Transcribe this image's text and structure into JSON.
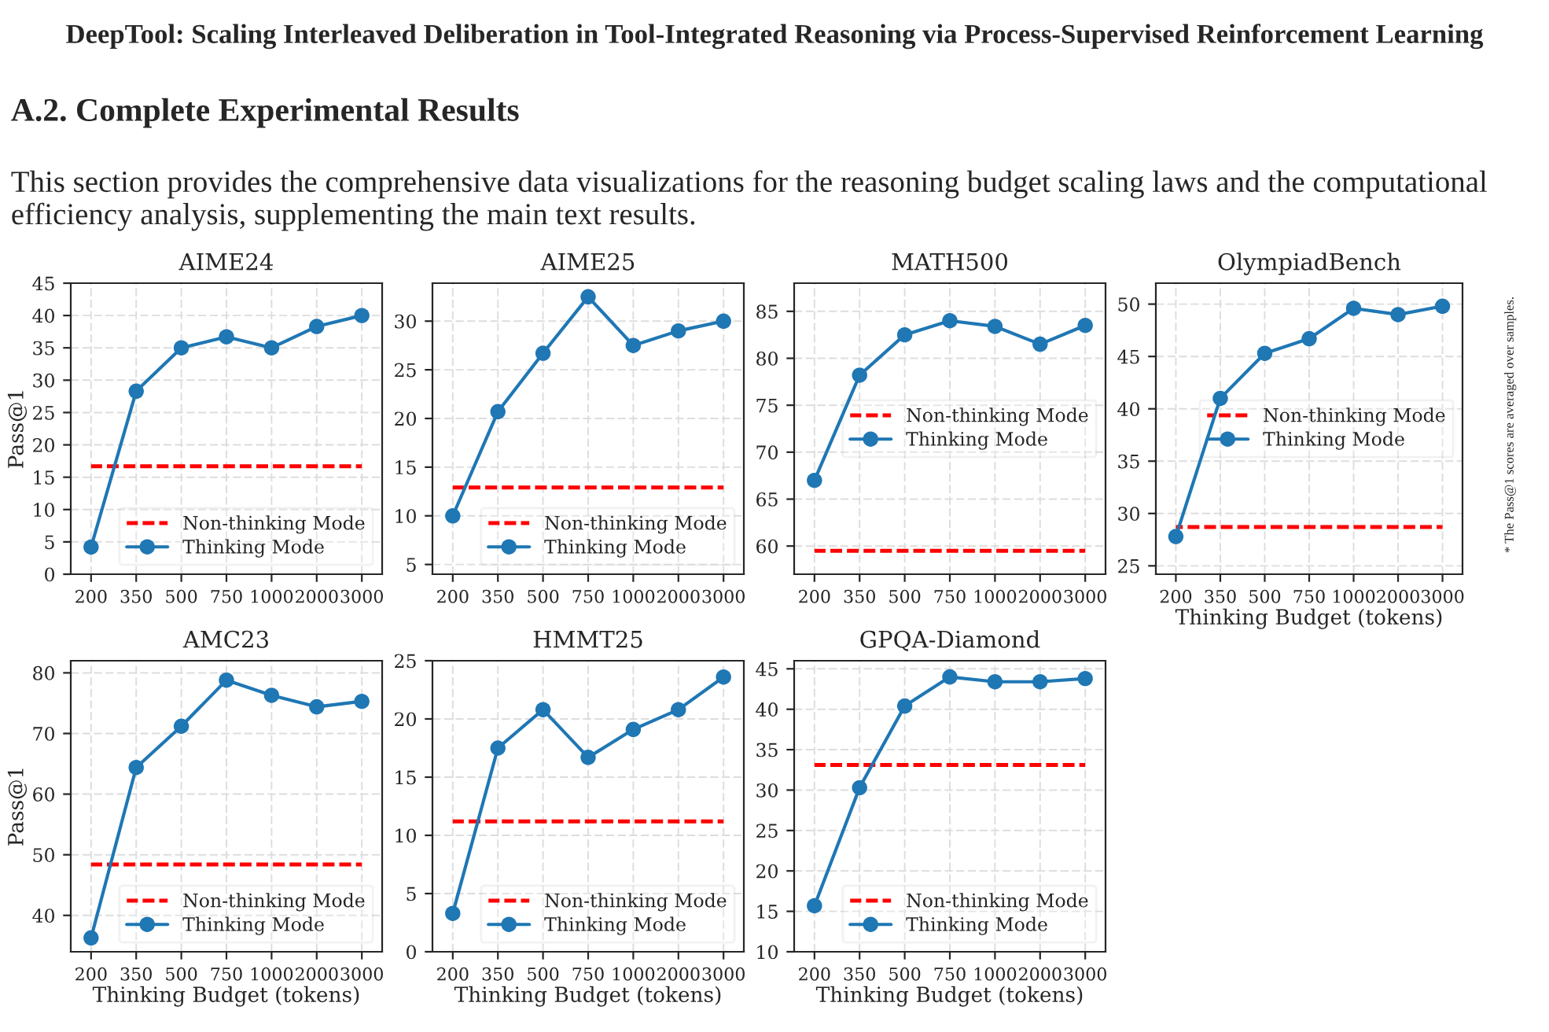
{
  "chart_data": [
    {
      "type": "line",
      "title": "AIME24",
      "ylabel": "Pass@1",
      "categories": [
        "200",
        "350",
        "500",
        "750",
        "1000",
        "2000",
        "3000"
      ],
      "ylim": [
        0,
        45
      ],
      "yticks": [
        0,
        5,
        10,
        15,
        20,
        25,
        30,
        35,
        40,
        45
      ],
      "grid": true,
      "legend": "bottom right",
      "series": [
        {
          "name": "Non-thinking Mode",
          "color": "#ff0000",
          "marker": "none",
          "line_style": "dashed",
          "values": [
            16.7,
            16.7,
            16.7,
            16.7,
            16.7,
            16.7,
            16.7
          ]
        },
        {
          "name": "Thinking Mode",
          "color": "#1f77b4",
          "marker": "circle",
          "line_style": "solid",
          "values": [
            4.2,
            28.3,
            35.0,
            36.7,
            35.0,
            38.3,
            40.0
          ]
        }
      ],
      "annotations": [
        "DeepTool: Scaling Interleaved Deliberation in Tool-Integrated Reasoning via Process-Supervised Reinforcement Learning",
        "A.2. Complete Experimental Results",
        "This section provides the comprehensive data visualizations for the reasoning budget scaling laws and the computational efficiency analysis, supplementing the main text results."
      ]
    },
    {
      "type": "line",
      "title": "AIME25",
      "categories": [
        "200",
        "350",
        "500",
        "750",
        "1000",
        "2000",
        "3000"
      ],
      "ylim": [
        4,
        33.9
      ],
      "yticks": [
        5,
        10,
        15,
        20,
        25,
        30
      ],
      "grid": true,
      "legend": "bottom right",
      "series": [
        {
          "name": "Non-thinking Mode",
          "color": "#ff0000",
          "marker": "none",
          "line_style": "dashed",
          "values": [
            12.9,
            12.9,
            12.9,
            12.9,
            12.9,
            12.9,
            12.9
          ]
        },
        {
          "name": "Thinking Mode",
          "color": "#1f77b4",
          "marker": "circle",
          "line_style": "solid",
          "values": [
            10.0,
            20.7,
            26.7,
            32.5,
            27.5,
            29.0,
            30.0
          ]
        }
      ]
    },
    {
      "type": "line",
      "title": "MATH500",
      "categories": [
        "200",
        "350",
        "500",
        "750",
        "1000",
        "2000",
        "3000"
      ],
      "ylim": [
        57,
        88
      ],
      "yticks": [
        60,
        65,
        70,
        75,
        80,
        85
      ],
      "grid": true,
      "legend": "right",
      "series": [
        {
          "name": "Non-thinking Mode",
          "color": "#ff0000",
          "marker": "none",
          "line_style": "dashed",
          "values": [
            59.5,
            59.5,
            59.5,
            59.5,
            59.5,
            59.5,
            59.5
          ]
        },
        {
          "name": "Thinking Mode",
          "color": "#1f77b4",
          "marker": "circle",
          "line_style": "solid",
          "values": [
            67.0,
            78.2,
            82.5,
            84.0,
            83.4,
            81.5,
            83.5
          ]
        }
      ]
    },
    {
      "type": "line",
      "title": "OlympiadBench",
      "xlabel": "Thinking Budget (tokens)",
      "categories": [
        "200",
        "350",
        "500",
        "750",
        "1000",
        "2000",
        "3000"
      ],
      "ylim": [
        24.2,
        52
      ],
      "yticks": [
        25,
        30,
        35,
        40,
        45,
        50
      ],
      "grid": true,
      "legend": "right",
      "series": [
        {
          "name": "Non-thinking Mode",
          "color": "#ff0000",
          "marker": "none",
          "line_style": "dashed",
          "values": [
            28.7,
            28.7,
            28.7,
            28.7,
            28.7,
            28.7,
            28.7
          ]
        },
        {
          "name": "Thinking Mode",
          "color": "#1f77b4",
          "marker": "circle",
          "line_style": "solid",
          "values": [
            27.8,
            41.0,
            45.3,
            46.7,
            49.6,
            49.0,
            49.8
          ]
        }
      ],
      "annotations": [
        "* The Pass@1 scores are averaged over samples."
      ]
    },
    {
      "type": "line",
      "title": "AMC23",
      "xlabel": "Thinking Budget (tokens)",
      "ylabel": "Pass@1",
      "categories": [
        "200",
        "350",
        "500",
        "750",
        "1000",
        "2000",
        "3000"
      ],
      "ylim": [
        34,
        82
      ],
      "yticks": [
        40,
        50,
        60,
        70,
        80
      ],
      "grid": true,
      "legend": "bottom right",
      "series": [
        {
          "name": "Non-thinking Mode",
          "color": "#ff0000",
          "marker": "none",
          "line_style": "dashed",
          "values": [
            48.4,
            48.4,
            48.4,
            48.4,
            48.4,
            48.4,
            48.4
          ]
        },
        {
          "name": "Thinking Mode",
          "color": "#1f77b4",
          "marker": "circle",
          "line_style": "solid",
          "values": [
            36.3,
            64.4,
            71.2,
            78.8,
            76.3,
            74.4,
            75.3
          ]
        }
      ]
    },
    {
      "type": "line",
      "title": "HMMT25",
      "xlabel": "Thinking Budget (tokens)",
      "categories": [
        "200",
        "350",
        "500",
        "750",
        "1000",
        "2000",
        "3000"
      ],
      "ylim": [
        0,
        25
      ],
      "yticks": [
        0,
        5,
        10,
        15,
        20,
        25
      ],
      "grid": true,
      "legend": "bottom right",
      "series": [
        {
          "name": "Non-thinking Mode",
          "color": "#ff0000",
          "marker": "none",
          "line_style": "dashed",
          "values": [
            11.2,
            11.2,
            11.2,
            11.2,
            11.2,
            11.2,
            11.2
          ]
        },
        {
          "name": "Thinking Mode",
          "color": "#1f77b4",
          "marker": "circle",
          "line_style": "solid",
          "values": [
            3.3,
            17.5,
            20.8,
            16.7,
            19.1,
            20.8,
            23.6
          ]
        }
      ]
    },
    {
      "type": "line",
      "title": "GPQA-Diamond",
      "xlabel": "Thinking Budget (tokens)",
      "categories": [
        "200",
        "350",
        "500",
        "750",
        "1000",
        "2000",
        "3000"
      ],
      "ylim": [
        10,
        46
      ],
      "yticks": [
        10,
        15,
        20,
        25,
        30,
        35,
        40,
        45
      ],
      "grid": true,
      "legend": "bottom right",
      "series": [
        {
          "name": "Non-thinking Mode",
          "color": "#ff0000",
          "marker": "none",
          "line_style": "dashed",
          "values": [
            33.1,
            33.1,
            33.1,
            33.1,
            33.1,
            33.1,
            33.1
          ]
        },
        {
          "name": "Thinking Mode",
          "color": "#1f77b4",
          "marker": "circle",
          "line_style": "solid",
          "values": [
            15.7,
            30.3,
            40.4,
            44.0,
            43.4,
            43.4,
            43.8
          ]
        }
      ]
    }
  ]
}
